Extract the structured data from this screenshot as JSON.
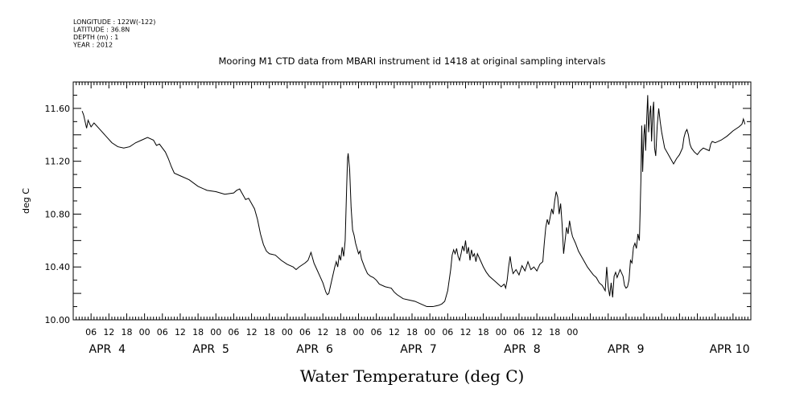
{
  "header": {
    "meta_lines": [
      "LONGITUDE : 122W(-122)",
      "LATITUDE : 36.8N",
      "DEPTH (m) : 1",
      "YEAR : 2012"
    ],
    "title": "Mooring M1 CTD data from MBARI instrument id 1418 at original sampling intervals"
  },
  "chart_data": {
    "type": "line",
    "title": "Mooring M1 CTD data from MBARI instrument id 1418 at original sampling intervals",
    "xlabel": "Water Temperature (deg C)",
    "ylabel": "deg C",
    "ylim": [
      10.0,
      11.8
    ],
    "y_ticks": [
      "10.00",
      "10.40",
      "10.80",
      "11.20",
      "11.60"
    ],
    "x_hour_ticks": [
      "06",
      "12",
      "18",
      "00",
      "06",
      "12",
      "18",
      "00",
      "06",
      "12",
      "18",
      "00",
      "06",
      "12",
      "18",
      "00",
      "06",
      "12",
      "18",
      "00",
      "06",
      "12",
      "18",
      "00",
      "06",
      "12",
      "18",
      "00"
    ],
    "x_day_labels": [
      "APR  4",
      "APR  5",
      "APR  6",
      "APR  7",
      "APR  8",
      "APR  9",
      "APR 10"
    ],
    "grid": false,
    "series": [
      {
        "values": [
          [
            3.0,
            11.58
          ],
          [
            3.5,
            11.55
          ],
          [
            4.5,
            11.45
          ],
          [
            5.0,
            11.51
          ],
          [
            6.0,
            11.46
          ],
          [
            7.0,
            11.49
          ],
          [
            9.0,
            11.44
          ],
          [
            11.0,
            11.39
          ],
          [
            13.0,
            11.34
          ],
          [
            15.0,
            11.31
          ],
          [
            17.0,
            11.3
          ],
          [
            19.0,
            11.31
          ],
          [
            21.0,
            11.34
          ],
          [
            23.0,
            11.36
          ],
          [
            25.0,
            11.38
          ],
          [
            27.0,
            11.36
          ],
          [
            28.0,
            11.32
          ],
          [
            29.0,
            11.33
          ],
          [
            31.0,
            11.27
          ],
          [
            32.0,
            11.22
          ],
          [
            33.0,
            11.16
          ],
          [
            34.0,
            11.11
          ],
          [
            36.0,
            11.09
          ],
          [
            39.0,
            11.06
          ],
          [
            42.0,
            11.01
          ],
          [
            45.0,
            10.98
          ],
          [
            48.0,
            10.97
          ],
          [
            51.0,
            10.95
          ],
          [
            54.0,
            10.96
          ],
          [
            55.0,
            10.98
          ],
          [
            56.0,
            10.99
          ],
          [
            57.0,
            10.95
          ],
          [
            58.0,
            10.91
          ],
          [
            59.0,
            10.92
          ],
          [
            60.0,
            10.88
          ],
          [
            61.0,
            10.84
          ],
          [
            62.0,
            10.76
          ],
          [
            63.0,
            10.65
          ],
          [
            64.0,
            10.57
          ],
          [
            65.0,
            10.52
          ],
          [
            66.0,
            10.5
          ],
          [
            68.0,
            10.49
          ],
          [
            70.0,
            10.45
          ],
          [
            72.0,
            10.42
          ],
          [
            74.0,
            10.4
          ],
          [
            75.0,
            10.38
          ],
          [
            76.0,
            10.4
          ],
          [
            78.0,
            10.43
          ],
          [
            79.0,
            10.45
          ],
          [
            80.0,
            10.51
          ],
          [
            80.5,
            10.47
          ],
          [
            81.0,
            10.43
          ],
          [
            82.0,
            10.38
          ],
          [
            83.0,
            10.33
          ],
          [
            84.0,
            10.28
          ],
          [
            85.0,
            10.21
          ],
          [
            85.5,
            10.19
          ],
          [
            86.0,
            10.2
          ],
          [
            87.0,
            10.3
          ],
          [
            88.0,
            10.4
          ],
          [
            88.5,
            10.44
          ],
          [
            89.0,
            10.4
          ],
          [
            89.5,
            10.49
          ],
          [
            90.0,
            10.45
          ],
          [
            90.5,
            10.55
          ],
          [
            91.0,
            10.48
          ],
          [
            91.5,
            10.6
          ],
          [
            92.0,
            11.0
          ],
          [
            92.3,
            11.22
          ],
          [
            92.5,
            11.26
          ],
          [
            93.0,
            11.14
          ],
          [
            93.5,
            10.85
          ],
          [
            94.0,
            10.68
          ],
          [
            94.5,
            10.64
          ],
          [
            95.0,
            10.58
          ],
          [
            96.0,
            10.5
          ],
          [
            96.5,
            10.52
          ],
          [
            97.0,
            10.46
          ],
          [
            98.0,
            10.4
          ],
          [
            99.0,
            10.35
          ],
          [
            100.0,
            10.33
          ],
          [
            101.0,
            10.32
          ],
          [
            102.0,
            10.3
          ],
          [
            103.0,
            10.27
          ],
          [
            105.0,
            10.25
          ],
          [
            107.0,
            10.24
          ],
          [
            108.0,
            10.21
          ],
          [
            109.0,
            10.19
          ],
          [
            111.0,
            10.16
          ],
          [
            113.0,
            10.15
          ],
          [
            115.0,
            10.14
          ],
          [
            117.0,
            10.12
          ],
          [
            118.0,
            10.11
          ],
          [
            119.0,
            10.1
          ],
          [
            121.0,
            10.1
          ],
          [
            123.0,
            10.11
          ],
          [
            124.0,
            10.12
          ],
          [
            125.0,
            10.14
          ],
          [
            125.5,
            10.18
          ],
          [
            126.0,
            10.22
          ],
          [
            126.5,
            10.3
          ],
          [
            127.0,
            10.38
          ],
          [
            127.5,
            10.49
          ],
          [
            128.0,
            10.53
          ],
          [
            128.5,
            10.5
          ],
          [
            129.0,
            10.54
          ],
          [
            129.5,
            10.48
          ],
          [
            130.0,
            10.45
          ],
          [
            130.5,
            10.5
          ],
          [
            131.0,
            10.56
          ],
          [
            131.5,
            10.52
          ],
          [
            132.0,
            10.6
          ],
          [
            132.5,
            10.5
          ],
          [
            133.0,
            10.55
          ],
          [
            133.5,
            10.45
          ],
          [
            134.0,
            10.53
          ],
          [
            134.5,
            10.48
          ],
          [
            135.0,
            10.5
          ],
          [
            135.5,
            10.44
          ],
          [
            136.0,
            10.5
          ],
          [
            137.0,
            10.45
          ],
          [
            138.0,
            10.4
          ],
          [
            139.0,
            10.36
          ],
          [
            140.0,
            10.33
          ],
          [
            141.0,
            10.31
          ],
          [
            142.0,
            10.29
          ],
          [
            143.0,
            10.27
          ],
          [
            144.0,
            10.25
          ],
          [
            145.0,
            10.27
          ],
          [
            145.5,
            10.24
          ],
          [
            146.0,
            10.3
          ],
          [
            146.5,
            10.4
          ],
          [
            147.0,
            10.48
          ],
          [
            147.5,
            10.4
          ],
          [
            148.0,
            10.35
          ],
          [
            149.0,
            10.38
          ],
          [
            150.0,
            10.34
          ],
          [
            151.0,
            10.41
          ],
          [
            152.0,
            10.37
          ],
          [
            153.0,
            10.44
          ],
          [
            154.0,
            10.38
          ],
          [
            155.0,
            10.4
          ],
          [
            156.0,
            10.37
          ],
          [
            157.0,
            10.42
          ],
          [
            158.0,
            10.44
          ],
          [
            158.5,
            10.58
          ],
          [
            159.0,
            10.7
          ],
          [
            159.5,
            10.76
          ],
          [
            160.0,
            10.72
          ],
          [
            160.5,
            10.78
          ],
          [
            161.0,
            10.84
          ],
          [
            161.5,
            10.8
          ],
          [
            162.0,
            10.9
          ],
          [
            162.5,
            10.97
          ],
          [
            163.0,
            10.93
          ],
          [
            163.5,
            10.8
          ],
          [
            164.0,
            10.88
          ],
          [
            164.5,
            10.72
          ],
          [
            165.0,
            10.5
          ],
          [
            165.5,
            10.6
          ],
          [
            166.0,
            10.7
          ],
          [
            166.5,
            10.65
          ],
          [
            167.0,
            10.75
          ],
          [
            167.5,
            10.68
          ],
          [
            168.0,
            10.63
          ],
          [
            169.0,
            10.58
          ],
          [
            170.0,
            10.52
          ],
          [
            171.0,
            10.48
          ],
          [
            172.0,
            10.44
          ],
          [
            173.0,
            10.4
          ],
          [
            174.0,
            10.37
          ],
          [
            175.0,
            10.34
          ],
          [
            176.0,
            10.32
          ],
          [
            177.0,
            10.28
          ],
          [
            178.0,
            10.26
          ],
          [
            179.0,
            10.22
          ],
          [
            179.5,
            10.4
          ],
          [
            180.0,
            10.25
          ],
          [
            180.5,
            10.18
          ],
          [
            181.0,
            10.28
          ],
          [
            181.5,
            10.17
          ],
          [
            182.0,
            10.33
          ],
          [
            182.5,
            10.36
          ],
          [
            183.0,
            10.32
          ],
          [
            184.0,
            10.38
          ],
          [
            185.0,
            10.33
          ],
          [
            185.5,
            10.26
          ],
          [
            186.0,
            10.24
          ],
          [
            186.5,
            10.25
          ],
          [
            187.0,
            10.3
          ],
          [
            187.5,
            10.45
          ],
          [
            188.0,
            10.43
          ],
          [
            188.5,
            10.55
          ],
          [
            189.0,
            10.58
          ],
          [
            189.5,
            10.54
          ],
          [
            190.0,
            10.65
          ],
          [
            190.5,
            10.6
          ],
          [
            191.0,
            11.05
          ],
          [
            191.3,
            11.47
          ],
          [
            191.6,
            11.12
          ],
          [
            192.0,
            11.4
          ],
          [
            192.3,
            11.48
          ],
          [
            192.6,
            11.28
          ],
          [
            193.0,
            11.54
          ],
          [
            193.3,
            11.7
          ],
          [
            193.6,
            11.42
          ],
          [
            194.0,
            11.56
          ],
          [
            194.3,
            11.62
          ],
          [
            194.6,
            11.35
          ],
          [
            195.0,
            11.58
          ],
          [
            195.3,
            11.65
          ],
          [
            195.6,
            11.3
          ],
          [
            196.0,
            11.24
          ],
          [
            196.5,
            11.47
          ],
          [
            197.0,
            11.6
          ],
          [
            197.5,
            11.5
          ],
          [
            198.0,
            11.42
          ],
          [
            198.5,
            11.36
          ],
          [
            199.0,
            11.3
          ],
          [
            200.0,
            11.26
          ],
          [
            201.0,
            11.22
          ],
          [
            202.0,
            11.18
          ],
          [
            203.0,
            11.22
          ],
          [
            204.0,
            11.25
          ],
          [
            205.0,
            11.3
          ],
          [
            205.5,
            11.38
          ],
          [
            206.0,
            11.42
          ],
          [
            206.5,
            11.44
          ],
          [
            207.0,
            11.4
          ],
          [
            207.5,
            11.33
          ],
          [
            208.0,
            11.3
          ],
          [
            209.0,
            11.27
          ],
          [
            210.0,
            11.25
          ],
          [
            211.0,
            11.28
          ],
          [
            212.0,
            11.3
          ],
          [
            213.0,
            11.29
          ],
          [
            214.0,
            11.28
          ],
          [
            214.5,
            11.33
          ],
          [
            215.0,
            11.35
          ],
          [
            216.0,
            11.34
          ],
          [
            218.0,
            11.36
          ],
          [
            220.0,
            11.39
          ],
          [
            222.0,
            11.43
          ],
          [
            224.0,
            11.46
          ],
          [
            225.0,
            11.48
          ],
          [
            225.5,
            11.52
          ],
          [
            226.0,
            11.48
          ]
        ]
      }
    ]
  }
}
